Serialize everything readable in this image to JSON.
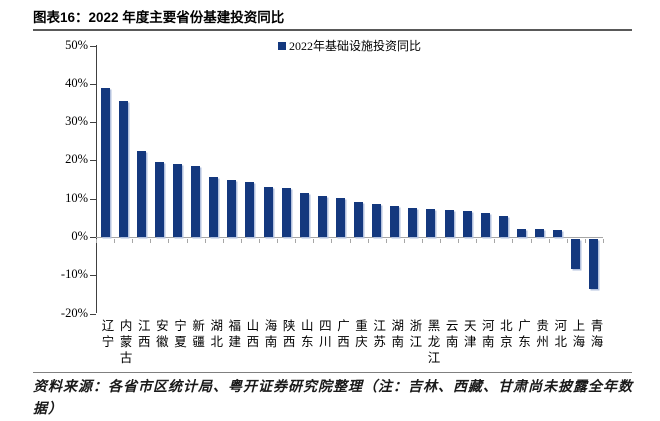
{
  "title": "图表16：2022 年度主要省份基建投资同比",
  "legend": {
    "label": "2022年基础设施投资同比"
  },
  "footer": "资料来源：各省市区统计局、粤开证券研究院整理（注：吉林、西藏、甘肃尚未披露全年数据）",
  "colors": {
    "bar": "#14387E",
    "bar_shadow": "#B3C1DE",
    "x_axis": "#A6A6A6",
    "y_axis": "#404040"
  },
  "chart_data": {
    "type": "bar",
    "title": "2022 年度主要省份基建投资同比",
    "legend": [
      "2022年基础设施投资同比"
    ],
    "legend_position": "top-center",
    "grid": false,
    "ylim": [
      -20,
      50
    ],
    "ytick_step": 10,
    "ytick_labels": [
      "50%",
      "40%",
      "30%",
      "20%",
      "10%",
      "0%",
      "-10%",
      "-20%"
    ],
    "ylabel": "",
    "xlabel": "",
    "categories": [
      "辽宁",
      "内蒙古",
      "江西",
      "安徽",
      "宁夏",
      "新疆",
      "湖北",
      "福建",
      "山西",
      "海南",
      "陕西",
      "山东",
      "四川",
      "广西",
      "重庆",
      "江苏",
      "湖南",
      "浙江",
      "黑龙江",
      "云南",
      "天津",
      "河南",
      "北京",
      "广东",
      "贵州",
      "河北",
      "上海",
      "青海"
    ],
    "values": [
      38.8,
      35.5,
      22.5,
      19.6,
      19.1,
      18.5,
      15.8,
      15.0,
      14.4,
      13.0,
      12.7,
      11.6,
      10.7,
      10.3,
      9.1,
      8.5,
      8.2,
      7.7,
      7.2,
      7.0,
      6.9,
      6.3,
      5.6,
      2.1,
      2.0,
      1.8,
      -8.0,
      -13.2
    ]
  }
}
